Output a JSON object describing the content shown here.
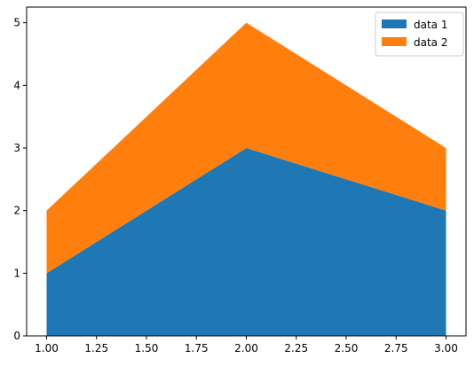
{
  "chart_data": {
    "type": "area",
    "stacked": true,
    "x": [
      1.0,
      2.0,
      3.0
    ],
    "series": [
      {
        "name": "data 1",
        "values": [
          1,
          3,
          2
        ],
        "color": "#1f77b4"
      },
      {
        "name": "data 2",
        "values": [
          1,
          2,
          1
        ],
        "color": "#ff7f0e"
      }
    ],
    "xlim": [
      0.9,
      3.1
    ],
    "ylim": [
      0,
      5.25
    ],
    "xticks": [
      1.0,
      1.25,
      1.5,
      1.75,
      2.0,
      2.25,
      2.5,
      2.75,
      3.0
    ],
    "xtick_labels": [
      "1.00",
      "1.25",
      "1.50",
      "1.75",
      "2.00",
      "2.25",
      "2.50",
      "2.75",
      "3.00"
    ],
    "yticks": [
      0,
      1,
      2,
      3,
      4,
      5
    ],
    "ytick_labels": [
      "0",
      "1",
      "2",
      "3",
      "4",
      "5"
    ],
    "title": "",
    "xlabel": "",
    "ylabel": "",
    "grid": false,
    "legend": "upper right"
  }
}
